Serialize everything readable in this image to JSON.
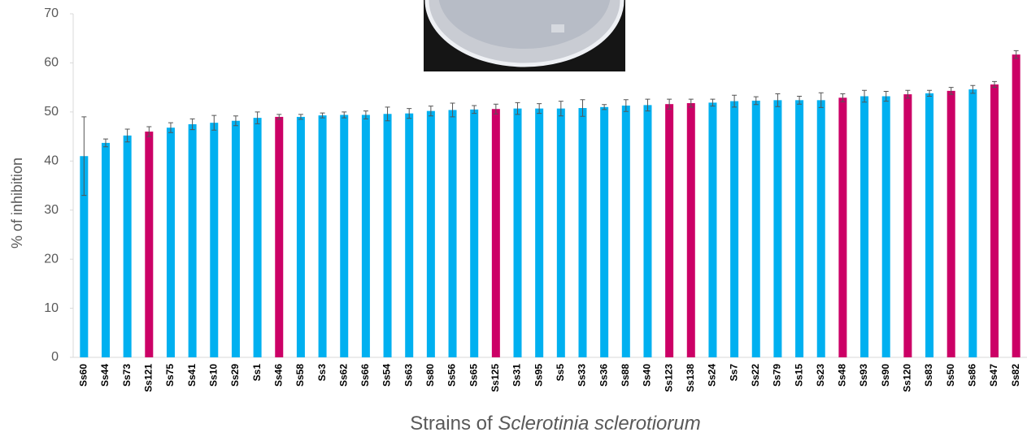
{
  "chart_data": {
    "type": "bar",
    "ylabel": "% of inhibition",
    "xlabel": {
      "prefix": "Strains of",
      "italic": "Sclerotinia sclerotiorum"
    },
    "categories": [
      "Ss60",
      "Ss44",
      "Ss73",
      "Ss121",
      "Ss75",
      "Ss41",
      "Ss10",
      "Ss29",
      "Ss1",
      "Ss46",
      "Ss58",
      "Ss3",
      "Ss62",
      "Ss66",
      "Ss54",
      "Ss63",
      "Ss80",
      "Ss56",
      "Ss65",
      "Ss125",
      "Ss31",
      "Ss95",
      "Ss5",
      "Ss33",
      "Ss36",
      "Ss88",
      "Ss40",
      "Ss123",
      "Ss138",
      "Ss24",
      "Ss7",
      "Ss22",
      "Ss79",
      "Ss15",
      "Ss23",
      "Ss48",
      "Ss93",
      "Ss90",
      "Ss120",
      "Ss83",
      "Ss50",
      "Ss86",
      "Ss47",
      "Ss82"
    ],
    "values": [
      41.0,
      43.7,
      45.2,
      46.0,
      46.8,
      47.5,
      47.8,
      48.2,
      48.8,
      49.0,
      49.0,
      49.3,
      49.4,
      49.4,
      49.6,
      49.7,
      50.2,
      50.4,
      50.5,
      50.6,
      50.7,
      50.7,
      50.7,
      50.8,
      51.0,
      51.3,
      51.4,
      51.6,
      51.8,
      51.9,
      52.2,
      52.3,
      52.4,
      52.4,
      52.4,
      52.9,
      53.2,
      53.2,
      53.6,
      53.8,
      54.3,
      54.6,
      55.6,
      61.7
    ],
    "errors": [
      8.0,
      0.8,
      1.3,
      1.0,
      1.0,
      1.1,
      1.5,
      1.0,
      1.2,
      0.5,
      0.5,
      0.5,
      0.6,
      0.8,
      1.4,
      1.0,
      1.0,
      1.4,
      0.8,
      1.0,
      1.2,
      1.0,
      1.5,
      1.7,
      0.5,
      1.2,
      1.2,
      1.0,
      0.8,
      0.7,
      1.2,
      0.8,
      1.3,
      0.8,
      1.5,
      0.8,
      1.2,
      1.0,
      0.8,
      0.6,
      0.7,
      0.8,
      0.6,
      0.8
    ],
    "colors": [
      "#00b0f0",
      "#00b0f0",
      "#00b0f0",
      "#cc0066",
      "#00b0f0",
      "#00b0f0",
      "#00b0f0",
      "#00b0f0",
      "#00b0f0",
      "#cc0066",
      "#00b0f0",
      "#00b0f0",
      "#00b0f0",
      "#00b0f0",
      "#00b0f0",
      "#00b0f0",
      "#00b0f0",
      "#00b0f0",
      "#00b0f0",
      "#cc0066",
      "#00b0f0",
      "#00b0f0",
      "#00b0f0",
      "#00b0f0",
      "#00b0f0",
      "#00b0f0",
      "#00b0f0",
      "#cc0066",
      "#cc0066",
      "#00b0f0",
      "#00b0f0",
      "#00b0f0",
      "#00b0f0",
      "#00b0f0",
      "#00b0f0",
      "#cc0066",
      "#00b0f0",
      "#00b0f0",
      "#cc0066",
      "#00b0f0",
      "#cc0066",
      "#00b0f0",
      "#cc0066",
      "#cc0066"
    ],
    "ylim": [
      0,
      70
    ],
    "yticks": [
      0,
      10,
      20,
      30,
      40,
      50,
      60,
      70
    ],
    "grid": false
  }
}
